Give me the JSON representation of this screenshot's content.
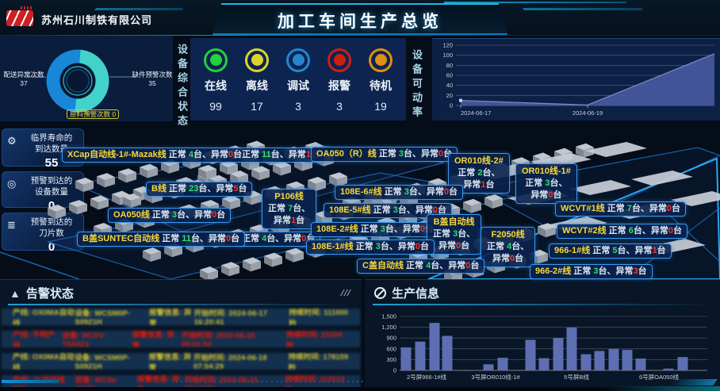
{
  "header": {
    "company": "苏州石川制铁有限公司",
    "title": "加工车间生产总览"
  },
  "status_panel": {
    "vertical_title": "设备综合状态",
    "donut_chart_data": {
      "type": "pie",
      "segments": [
        {
          "label": "配送异常次数",
          "value": 37,
          "color": "#1a86d8"
        },
        {
          "label": "缺件预警次数",
          "value": 35,
          "color": "#43d1cc"
        },
        {
          "label": "原料预警次数",
          "value": 0,
          "color": "#d8c42a"
        }
      ]
    },
    "indicators": [
      {
        "label": "在线",
        "value": 99,
        "color": "#25d03c"
      },
      {
        "label": "离线",
        "value": 17,
        "color": "#ddd22e"
      },
      {
        "label": "调试",
        "value": 3,
        "color": "#2585d0"
      },
      {
        "label": "报警",
        "value": 3,
        "color": "#cc1f10"
      },
      {
        "label": "待机",
        "value": 19,
        "color": "#dd8f16"
      }
    ]
  },
  "availability": {
    "vertical_title": "设备可动率",
    "chart_data": {
      "type": "area",
      "categories": [
        "2024-06-17",
        "2024-06-19",
        ""
      ],
      "values": [
        10,
        1,
        103
      ],
      "yticks": [
        0,
        20,
        40,
        60,
        80,
        100,
        120
      ],
      "ylim": [
        0,
        120
      ],
      "fill_color": "#47599f",
      "grid": true
    }
  },
  "stat_boxes": [
    {
      "icon": "gear-icon",
      "line1": "临界寿命的",
      "line2": "到达数量",
      "value": "55"
    },
    {
      "icon": "target-icon",
      "line1": "预警到达的",
      "line2": "设备数量",
      "value": "0"
    },
    {
      "icon": "layers-icon",
      "line1": "预警到达的",
      "line2": "刀片数",
      "value": "0"
    }
  ],
  "floor": {
    "unit": {
      "normal_label": "正常 ",
      "tai_sep": "台、",
      "abnormal_label": "异常",
      "tai": "台"
    },
    "lines": [
      {
        "id": "xcap",
        "name": "XCap自动线-1#-Mazak线",
        "stats": [
          {
            "normal": 4,
            "abnormal": 0
          },
          {
            "normal": 11,
            "abnormal": 1
          }
        ]
      },
      {
        "id": "oa050r",
        "name": "OA050（R）线",
        "stats": [
          {
            "normal": 3,
            "abnormal": 0
          }
        ]
      },
      {
        "id": "or010_2",
        "name": "OR010线-2#",
        "stats": [
          {
            "normal": 2,
            "abnormal": 1
          }
        ],
        "multiline": true
      },
      {
        "id": "or010_1",
        "name": "OR010线-1#",
        "stats": [
          {
            "normal": 3,
            "abnormal": 0
          }
        ],
        "multiline": true
      },
      {
        "id": "b",
        "name": "B线",
        "stats": [
          {
            "normal": 23,
            "abnormal": 5
          }
        ]
      },
      {
        "id": "p106",
        "name": "P106线",
        "stats": [
          {
            "normal": 7,
            "abnormal": 1
          }
        ],
        "multiline": true
      },
      {
        "id": "e6",
        "name": "108E-6#线",
        "stats": [
          {
            "normal": 3,
            "abnormal": 0
          }
        ]
      },
      {
        "id": "e5",
        "name": "108E-5#线",
        "stats": [
          {
            "normal": 3,
            "abnormal": 0
          }
        ]
      },
      {
        "id": "oa050",
        "name": "OA050线",
        "stats": [
          {
            "normal": 3,
            "abnormal": 0
          }
        ]
      },
      {
        "id": "wcvt1",
        "name": "WCVT#1线",
        "stats": [
          {
            "normal": 7,
            "abnormal": 0
          }
        ]
      },
      {
        "id": "e2",
        "name": "108E-2#线",
        "stats": [
          {
            "normal": 3,
            "abnormal": 0
          }
        ]
      },
      {
        "id": "bgai",
        "name": "B盖自动线",
        "stats": [
          {
            "normal": 3,
            "abnormal": 0
          }
        ],
        "multiline": true
      },
      {
        "id": "f2050",
        "name": "F2050线",
        "stats": [
          {
            "normal": 4,
            "abnormal": 0
          }
        ],
        "multiline": true
      },
      {
        "id": "wcvt2",
        "name": "WCVT#2线",
        "stats": [
          {
            "normal": 6,
            "abnormal": 0
          }
        ]
      },
      {
        "id": "suntec_partial",
        "name": "",
        "stats": [
          {
            "normal": 4,
            "abnormal": 0
          }
        ],
        "partial": true
      },
      {
        "id": "bsuntec",
        "name": "B盖SUNTEC自动线",
        "stats": [
          {
            "normal": 11,
            "abnormal": 0
          }
        ]
      },
      {
        "id": "e1",
        "name": "108E-1#线",
        "stats": [
          {
            "normal": 3,
            "abnormal": 0
          }
        ]
      },
      {
        "id": "n966_1",
        "name": "966-1#线",
        "stats": [
          {
            "normal": 5,
            "abnormal": 1
          }
        ]
      },
      {
        "id": "cgai",
        "name": "C盖自动线",
        "stats": [
          {
            "normal": 4,
            "abnormal": 0
          }
        ]
      },
      {
        "id": "n966_2",
        "name": "966-2#线",
        "stats": [
          {
            "normal": 3,
            "abnormal": 3
          }
        ]
      }
    ]
  },
  "alarm_panel": {
    "title": "告警状态",
    "deco": "///",
    "rows": [
      {
        "severity": "warning",
        "items": [
          "产线: OX0MA自动线",
          "设备: WCSM0P-S0921H",
          "报警信息: 异常",
          "开始时间: 2024-06-17 16:20:41",
          "持续时间: 111000秒"
        ]
      },
      {
        "severity": "critical",
        "items": [
          "产线: 不明产线",
          "设备: WC0V-T5A0Z1",
          "报警信息: 异常",
          "开始时间: 2024-06-20 09:01:52",
          "持续时间: 15204秒"
        ]
      },
      {
        "severity": "warning",
        "items": [
          "产线: OX0MA自动线",
          "设备: WCSM0P-S0921H",
          "报警信息: 异常",
          "开始时间: 2024-06-18 07:54:29",
          "持续时间: 178159秒"
        ]
      },
      {
        "severity": "critical",
        "items": [
          "产线: JC自动线E20",
          "设备: WC0a-45iZ0r",
          "报警信息: 异常",
          "开始时间: 2024-06-21 19:17:06",
          "持续时间: 110012秒"
        ]
      }
    ]
  },
  "production_panel": {
    "title": "生产信息",
    "chart_data": {
      "type": "bar",
      "values": [
        640,
        800,
        1320,
        960,
        170,
        350,
        850,
        340,
        900,
        1190,
        450,
        540,
        600,
        570,
        330,
        50,
        370
      ],
      "yticks": [
        "0",
        "300",
        "600",
        "900",
        "1,200",
        "1,500"
      ],
      "ylim": [
        0,
        1500
      ],
      "x_group_labels": [
        "2号屏966-1#线",
        "3号屏OR010线-1#",
        "5号屏B线",
        "6号屏OA050线"
      ],
      "bar_color": "#5e6eb2",
      "grid": true
    }
  }
}
